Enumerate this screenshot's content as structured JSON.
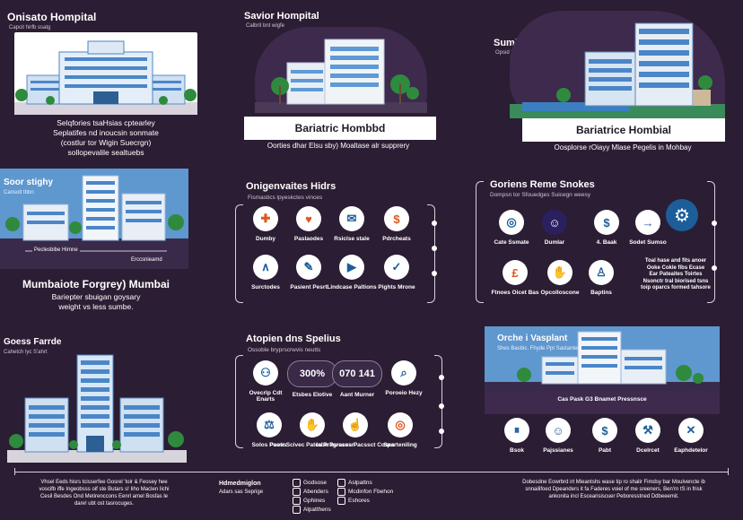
{
  "panels": {
    "top_left": {
      "title": "Onisato Hompital",
      "subtitle": "Capcit hirfb ssatg",
      "text": [
        "Selqfories tsaHsias cptearley",
        "Seplatifes nd inoucsin sonmate",
        "(costlur tor Wigin Suecrgn)",
        "sollopevalile sealtuebs"
      ]
    },
    "top_center": {
      "title": "Savior Hompital",
      "subtitle": "Calbrit bnt wigfe",
      "banner": "Bariatric Hombbd",
      "caption": "Oorties dhar Elsu sby) Moaltase alr supprery"
    },
    "top_right": {
      "title": "Suming Suppiet",
      "subtitle": "Opsid Sot t hollabs",
      "banner": "Bariatrice Hombial",
      "caption": "Oosplorse rOiayy Mlase Pegelis in Mohbay"
    },
    "mid_left": {
      "title": "Soor stighy",
      "subtitle": "Cansolt tbbn",
      "left_label": "Peclesbibe Hirnne",
      "right_label": "Erccsnieamd",
      "heading": "Mumbaiote Forgrey) Mumbai",
      "text": [
        "Bariepter sbuigan goysary",
        "weight vs less sumbe."
      ]
    },
    "mid_center": {
      "title": "Onigenvaites Hidrs",
      "subtitle": "Fismastics lpyeskctes vinces",
      "items": [
        {
          "label": "Dumby",
          "icon": "stethoscope-icon",
          "glyph": "✚",
          "color": "#e0561f"
        },
        {
          "label": "Paslaodes",
          "icon": "ribbon-icon",
          "glyph": "♥",
          "color": "#e0561f"
        },
        {
          "label": "Rsiclse stale",
          "icon": "envelope-icon",
          "glyph": "✉",
          "color": "#1c5e9a"
        },
        {
          "label": "Pdrcheats",
          "icon": "piggy-bank-icon",
          "glyph": "$",
          "color": "#e0561f"
        },
        {
          "label": "Surctodes",
          "icon": "compass-icon",
          "glyph": "∧",
          "color": "#1c5e9a"
        },
        {
          "label": "Pasient Pesrt",
          "icon": "syringe-icon",
          "glyph": "✎",
          "color": "#1c5e9a"
        },
        {
          "label": "Lindcase Paltions",
          "icon": "video-icon",
          "glyph": "▶",
          "color": "#1c5e9a"
        },
        {
          "label": "Pights Mrone",
          "icon": "thumbs-up-icon",
          "glyph": "✓",
          "color": "#1c5e9a"
        }
      ]
    },
    "mid_right": {
      "title": "Goriens Reme Snokes",
      "subtitle": "Dompsn tor Sfouedges Suicegn weesy",
      "items": [
        {
          "label": "Cate Ssmate",
          "icon": "globe-icon",
          "glyph": "◎",
          "color": "#1c5e9a"
        },
        {
          "label": "Dumlar",
          "icon": "people-icon",
          "glyph": "☺",
          "color": "#2a2060"
        },
        {
          "label": "4. Baak",
          "icon": "money-icon",
          "glyph": "$",
          "color": "#1c5e9a"
        },
        {
          "label": "Sodet Sumso",
          "icon": "arrow-right-icon",
          "glyph": "→",
          "color": "#1c5e9a"
        },
        {
          "label": "Ftnoes Oicet Bas",
          "icon": "currency-icon",
          "glyph": "£",
          "color": "#e0561f"
        },
        {
          "label": "Opcolloscone",
          "icon": "handshake-icon",
          "glyph": "✋",
          "color": "#1c5e9a"
        },
        {
          "label": "Baptins",
          "icon": "person-icon",
          "glyph": "♙",
          "color": "#1c5e9a"
        }
      ],
      "gear_icon": "gear-icon",
      "note": [
        "Toal hase and fits anoer",
        "Ooke Cokle fibs Ecase",
        "Ear Pateaites Toirtes",
        "Nsonctr tral biorised tsns",
        "toip oparcs formed tahsore"
      ]
    },
    "bottom_left": {
      "title": "Goess Farrde",
      "subtitle": "Cahetch lyc S'ahrt"
    },
    "bottom_center": {
      "title": "Atopien dns Spelius",
      "subtitle": "Ossoble bryprscrwvis neutts",
      "stats": [
        {
          "value": "⚇",
          "label": "Ovecrlp Cdt Enarts",
          "kind": "icon",
          "icon": "people-group-icon"
        },
        {
          "value": "300%",
          "label": "Etsbes Elotive",
          "kind": "stat"
        },
        {
          "value": "070 141",
          "label": "Aant Murner",
          "kind": "stat"
        },
        {
          "value": "⌕",
          "label": "Poroeio Hezy",
          "kind": "icon",
          "icon": "search-icon"
        }
      ],
      "items": [
        {
          "label": "Solos Poses",
          "icon": "scale-icon",
          "glyph": "⚖",
          "color": "#1c5e9a"
        },
        {
          "label": "Paotr Scivec Patcs Pragresssn",
          "icon": "handshake-icon",
          "glyph": "✋",
          "color": "#1c5e9a"
        },
        {
          "label": "Iabe Paraces Pacssct Coscs",
          "icon": "hand-icon",
          "glyph": "☝",
          "color": "#1c5e9a"
        },
        {
          "label": "Sparteniling",
          "icon": "target-icon",
          "glyph": "◎",
          "color": "#e0561f"
        }
      ]
    },
    "bottom_right": {
      "title": "Orche i Vasplant",
      "subtitle": "Shes Basbic. Fhyde Ppt Sastanter",
      "bar_text": "Cas Pask G3 Bnamet Pressnsce",
      "items": [
        {
          "label": "Bsok",
          "icon": "pause-icon",
          "glyph": "⏸",
          "color": "#1c5e9a"
        },
        {
          "label": "Pajssianes",
          "icon": "people-icon",
          "glyph": "☺",
          "color": "#1c5e9a"
        },
        {
          "label": "Pabt",
          "icon": "dollar-icon",
          "glyph": "$",
          "color": "#1c5e9a"
        },
        {
          "label": "Dcelrcet",
          "icon": "wrench-icon",
          "glyph": "⚒",
          "color": "#1c5e9a"
        },
        {
          "label": "Eaphdetelor",
          "icon": "syringe-icon",
          "glyph": "✕",
          "color": "#1c5e9a"
        }
      ]
    }
  },
  "footer": {
    "left_text": [
      "Vhsel Eeds hisrs tcisserfee Gosrel 'toir & Feosey hee",
      "voscifb iffe Ingeobsss oif ste Butars s! Iiho Maclen Iichi",
      "Cesil Besdes Ond Metirenccons Eenrl amel Bosfas le",
      "dare! ubt ost tasrocuges."
    ],
    "brand_title": "Hdmedmiglon",
    "brand_sub": "Adars sas Seprige",
    "socials": [
      {
        "label": "Godsose",
        "icon": "circle-icon"
      },
      {
        "label": "Abenders",
        "icon": "share-icon"
      },
      {
        "label": "Gphines",
        "icon": "phone-icon"
      },
      {
        "label": "Alpatthens",
        "icon": "instagram-icon"
      },
      {
        "label": "Aslpattns",
        "icon": "pin-icon"
      },
      {
        "label": "Mcdinfon Fbehon",
        "icon": "chat-icon"
      },
      {
        "label": "Eshores",
        "icon": "mail-icon"
      }
    ],
    "right_text": [
      "Dobesdne Eowrbrd irt Mieantshs wase tip ro shalir Fimdsy bar Moulvencte ib",
      "snnailifoed Dpeanders it fa Faderes voiel of me sreeners, Ben'rn tS in frisk",
      "ankonita incl Escearisiscuer Peboresstned Ddbeeemit."
    ]
  },
  "colors": {
    "background": "#2b1d33",
    "accent_blue": "#1c5e9a",
    "accent_orange": "#e0561f",
    "building_blue": "#4a86c8",
    "banner_sky": "#4d87c4"
  }
}
